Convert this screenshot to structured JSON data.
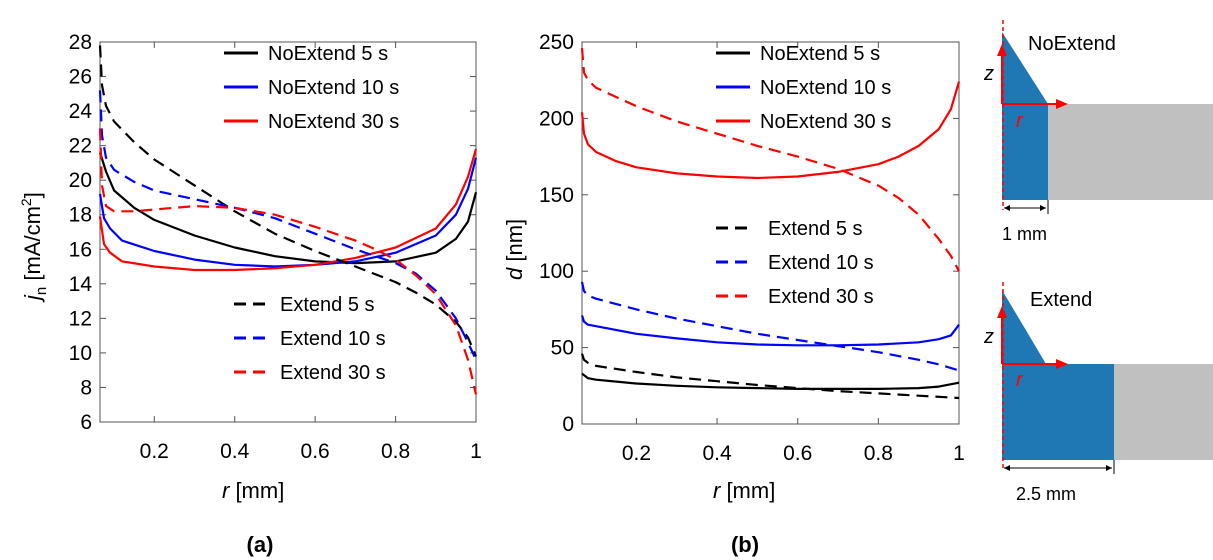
{
  "panel_labels": [
    "(a)",
    "(b)"
  ],
  "chart_data": [
    {
      "type": "line",
      "panel": "(a)",
      "xlabel": "r  [mm]",
      "ylabel": "j_n  [mA/cm2]",
      "xlim": [
        0.065,
        1.0
      ],
      "ylim": [
        6,
        28
      ],
      "xticks": [
        0.2,
        0.4,
        0.6,
        0.8,
        1
      ],
      "yticks": [
        6,
        8,
        10,
        12,
        14,
        16,
        18,
        20,
        22,
        24,
        26,
        28
      ],
      "grid": false,
      "legend_placement": "top-right (solid) and bottom-right (dashed)",
      "series": [
        {
          "name": "NoExtend 5 s",
          "color": "#000000",
          "dash": "solid",
          "x": [
            0.065,
            0.08,
            0.1,
            0.15,
            0.2,
            0.3,
            0.4,
            0.5,
            0.6,
            0.7,
            0.8,
            0.9,
            0.95,
            0.98,
            1.0
          ],
          "y": [
            21.6,
            20.5,
            19.4,
            18.4,
            17.7,
            16.8,
            16.1,
            15.6,
            15.3,
            15.2,
            15.3,
            15.8,
            16.6,
            17.6,
            19.3
          ]
        },
        {
          "name": "NoExtend 10 s",
          "color": "#0000ff",
          "dash": "solid",
          "x": [
            0.065,
            0.075,
            0.09,
            0.12,
            0.2,
            0.3,
            0.4,
            0.5,
            0.6,
            0.7,
            0.8,
            0.9,
            0.95,
            0.98,
            1.0
          ],
          "y": [
            19.2,
            17.8,
            17.2,
            16.5,
            15.9,
            15.4,
            15.1,
            15.0,
            15.1,
            15.3,
            15.8,
            16.8,
            18.0,
            19.5,
            21.3
          ]
        },
        {
          "name": "NoExtend 30 s",
          "color": "#ff0000",
          "dash": "solid",
          "x": [
            0.065,
            0.075,
            0.09,
            0.12,
            0.2,
            0.3,
            0.4,
            0.5,
            0.6,
            0.7,
            0.8,
            0.9,
            0.95,
            0.98,
            1.0
          ],
          "y": [
            17.9,
            16.3,
            15.8,
            15.3,
            15.0,
            14.8,
            14.8,
            14.9,
            15.1,
            15.5,
            16.1,
            17.2,
            18.6,
            20.2,
            21.8
          ]
        },
        {
          "name": "Extend 5 s",
          "color": "#000000",
          "dash": "dashed",
          "x": [
            0.065,
            0.07,
            0.08,
            0.1,
            0.15,
            0.2,
            0.3,
            0.4,
            0.5,
            0.6,
            0.7,
            0.8,
            0.85,
            0.9,
            0.95,
            0.98,
            1.0
          ],
          "y": [
            27.8,
            25.5,
            24.3,
            23.4,
            22.2,
            21.2,
            19.7,
            18.2,
            16.9,
            15.9,
            15.0,
            14.1,
            13.5,
            12.8,
            11.8,
            10.9,
            9.8
          ]
        },
        {
          "name": "Extend 10 s",
          "color": "#0000ff",
          "dash": "dashed",
          "x": [
            0.065,
            0.07,
            0.08,
            0.1,
            0.15,
            0.2,
            0.3,
            0.4,
            0.5,
            0.6,
            0.7,
            0.8,
            0.85,
            0.9,
            0.95,
            0.98,
            1.0
          ],
          "y": [
            25.2,
            22.6,
            21.3,
            20.6,
            19.9,
            19.4,
            18.9,
            18.4,
            17.8,
            16.9,
            16.0,
            15.2,
            14.6,
            13.6,
            12.0,
            10.6,
            9.6
          ]
        },
        {
          "name": "Extend 30 s",
          "color": "#ff0000",
          "dash": "dashed",
          "x": [
            0.065,
            0.07,
            0.08,
            0.1,
            0.15,
            0.2,
            0.3,
            0.4,
            0.5,
            0.6,
            0.7,
            0.75,
            0.8,
            0.85,
            0.9,
            0.95,
            0.98,
            1.0
          ],
          "y": [
            23.0,
            19.7,
            18.5,
            18.2,
            18.2,
            18.3,
            18.5,
            18.4,
            18.0,
            17.3,
            16.5,
            16.0,
            15.4,
            14.5,
            13.4,
            11.6,
            9.6,
            7.6
          ]
        }
      ]
    },
    {
      "type": "line",
      "panel": "(b)",
      "xlabel": "r  [mm]",
      "ylabel": "d  [nm]",
      "xlim": [
        0.065,
        1.0
      ],
      "ylim": [
        0,
        250
      ],
      "xticks": [
        0.2,
        0.4,
        0.6,
        0.8,
        1
      ],
      "yticks": [
        0,
        50,
        100,
        150,
        200,
        250
      ],
      "grid": false,
      "legend_placement": "top-right (solid) and center (dashed)",
      "series": [
        {
          "name": "NoExtend 5 s",
          "color": "#000000",
          "dash": "solid",
          "x": [
            0.065,
            0.08,
            0.1,
            0.2,
            0.3,
            0.4,
            0.5,
            0.6,
            0.7,
            0.8,
            0.9,
            0.95,
            1.0
          ],
          "y": [
            33,
            30,
            29,
            26.5,
            25,
            24,
            23.5,
            23,
            23,
            23,
            23.5,
            24.5,
            27
          ]
        },
        {
          "name": "NoExtend 10 s",
          "color": "#0000ff",
          "dash": "solid",
          "x": [
            0.065,
            0.07,
            0.08,
            0.1,
            0.2,
            0.3,
            0.4,
            0.5,
            0.6,
            0.7,
            0.8,
            0.9,
            0.95,
            0.98,
            1.0
          ],
          "y": [
            71,
            67,
            65,
            64,
            59,
            56,
            53.5,
            52,
            51.5,
            51.5,
            52,
            53.5,
            55.5,
            58,
            65
          ]
        },
        {
          "name": "NoExtend 30 s",
          "color": "#ff0000",
          "dash": "solid",
          "x": [
            0.065,
            0.07,
            0.08,
            0.1,
            0.15,
            0.2,
            0.3,
            0.4,
            0.5,
            0.6,
            0.7,
            0.8,
            0.85,
            0.9,
            0.95,
            0.98,
            1.0
          ],
          "y": [
            204,
            190,
            183,
            178,
            172,
            168,
            164,
            162,
            161,
            162,
            165,
            170,
            175,
            182,
            193,
            206,
            224
          ]
        },
        {
          "name": "Extend 5 s",
          "color": "#000000",
          "dash": "dashed",
          "x": [
            0.065,
            0.07,
            0.08,
            0.1,
            0.2,
            0.3,
            0.4,
            0.5,
            0.6,
            0.7,
            0.8,
            0.9,
            1.0
          ],
          "y": [
            46,
            42,
            40,
            38,
            34,
            30.5,
            28,
            25.5,
            23.5,
            21.5,
            20,
            18.5,
            17
          ]
        },
        {
          "name": "Extend 10 s",
          "color": "#0000ff",
          "dash": "dashed",
          "x": [
            0.065,
            0.07,
            0.08,
            0.1,
            0.2,
            0.3,
            0.4,
            0.5,
            0.6,
            0.7,
            0.8,
            0.9,
            0.95,
            1.0
          ],
          "y": [
            93,
            87,
            84,
            82,
            75,
            69,
            64,
            59,
            55,
            51,
            47,
            42,
            39,
            35
          ]
        },
        {
          "name": "Extend 30 s",
          "color": "#ff0000",
          "dash": "dashed",
          "x": [
            0.065,
            0.07,
            0.08,
            0.1,
            0.2,
            0.3,
            0.4,
            0.5,
            0.6,
            0.7,
            0.8,
            0.85,
            0.9,
            0.95,
            0.98,
            1.0
          ],
          "y": [
            246,
            230,
            225,
            220,
            208,
            198,
            190,
            182,
            175,
            167,
            156,
            148,
            137,
            121,
            110,
            100
          ]
        }
      ]
    }
  ],
  "schematic": {
    "top": {
      "title": "NoExtend",
      "z_label": "z",
      "r_label": "r",
      "dim_label": "1 mm"
    },
    "bottom": {
      "title": "Extend",
      "z_label": "z",
      "r_label": "r",
      "dim_label": "2.5 mm"
    },
    "colors": {
      "electrode": "#1f77b4",
      "substrate": "#c0c0c0",
      "axis": "#ff0000"
    }
  }
}
